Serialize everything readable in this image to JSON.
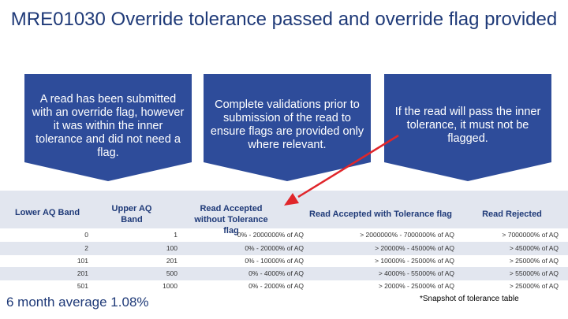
{
  "title": "MRE01030 Override tolerance passed and override flag provided",
  "boxes": [
    "A read has been submitted with an override flag, however it was within the inner tolerance and did not need a flag.",
    "Complete validations prior to submission of the read to ensure flags are provided only where relevant.",
    "If the read will pass the inner tolerance, it must not be flagged."
  ],
  "table": {
    "headers": [
      "Lower AQ Band",
      "Upper AQ Band",
      "Read Accepted without Tolerance flag",
      "Read Accepted with Tolerance flag",
      "Read Rejected"
    ],
    "rows": [
      [
        "0",
        "1",
        "0% - 2000000% of AQ",
        "> 2000000% - 7000000% of AQ",
        "> 7000000% of AQ"
      ],
      [
        "2",
        "100",
        "0% - 20000% of AQ",
        "> 20000% - 45000% of AQ",
        "> 45000% of AQ"
      ],
      [
        "101",
        "201",
        "0% - 10000% of AQ",
        "> 10000% - 25000% of AQ",
        "> 25000% of AQ"
      ],
      [
        "201",
        "500",
        "0% - 4000% of AQ",
        "> 4000% - 55000% of AQ",
        "> 55000% of AQ"
      ],
      [
        "501",
        "1000",
        "0% - 2000% of AQ",
        "> 2000% - 25000% of AQ",
        "> 25000% of AQ"
      ]
    ]
  },
  "footer": {
    "average": "6 month average 1.08%",
    "note": "*Snapshot of tolerance table"
  },
  "colors": {
    "box_fill": "#2e4c9a",
    "title": "#1f3a78",
    "arrow": "#e0262b",
    "table_band": "#e2e6ef"
  }
}
